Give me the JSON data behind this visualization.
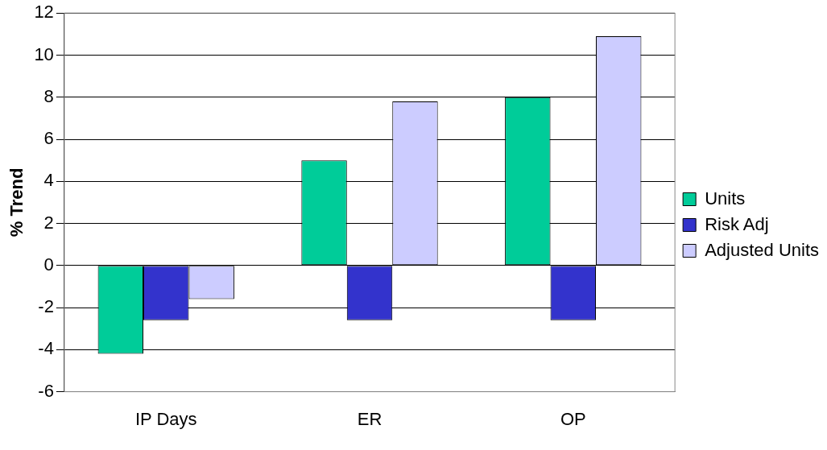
{
  "chart_data": {
    "type": "bar",
    "ylabel": "% Trend",
    "categories": [
      "IP Days",
      "ER",
      "OP"
    ],
    "series": [
      {
        "name": "Units",
        "color": "#00cc99",
        "values": [
          -4.2,
          5,
          8
        ]
      },
      {
        "name": "Risk Adj",
        "color": "#3333cc",
        "values": [
          -2.6,
          -2.6,
          -2.6
        ]
      },
      {
        "name": "Adjusted Units",
        "color": "#ccccff",
        "values": [
          -1.6,
          7.8,
          10.9
        ]
      }
    ],
    "ylim": [
      -6,
      12
    ],
    "yticks": [
      -6,
      -4,
      -2,
      0,
      2,
      4,
      6,
      8,
      10,
      12
    ],
    "grid": "y",
    "legend": "right"
  }
}
